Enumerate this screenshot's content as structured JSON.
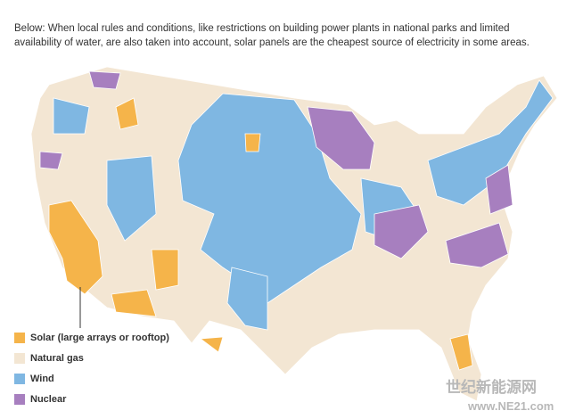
{
  "caption": "Below: When local rules and conditions, like restrictions on building power plants in national parks and limited availability of water, are also taken into account, solar panels are the cheapest source of electricity in some areas.",
  "legend": [
    {
      "label": "Solar (large arrays or rooftop)",
      "color": "#f5b44a"
    },
    {
      "label": "Natural gas",
      "color": "#f3e6d3"
    },
    {
      "label": "Wind",
      "color": "#7fb7e2"
    },
    {
      "label": "Nuclear",
      "color": "#a77fbf"
    }
  ],
  "watermark": {
    "name": "世纪新能源网",
    "url": "www.NE21.com"
  }
}
